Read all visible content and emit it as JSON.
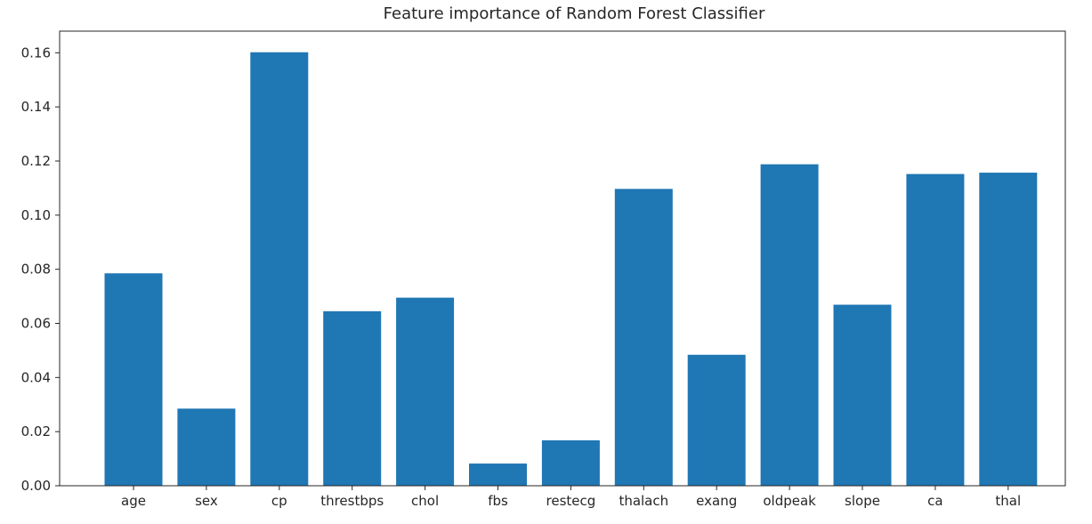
{
  "chart_data": {
    "type": "bar",
    "title": "Feature importance of Random Forest Classifier",
    "xlabel": "",
    "ylabel": "",
    "categories": [
      "age",
      "sex",
      "cp",
      "threstbps",
      "chol",
      "fbs",
      "restecg",
      "thalach",
      "exang",
      "oldpeak",
      "slope",
      "ca",
      "thal"
    ],
    "values": [
      0.0785,
      0.0285,
      0.1602,
      0.0645,
      0.0695,
      0.0082,
      0.0168,
      0.1097,
      0.0484,
      0.1188,
      0.0669,
      0.1152,
      0.1157
    ],
    "ylim": [
      0,
      0.168
    ],
    "yticks": [
      "0.00",
      "0.02",
      "0.04",
      "0.06",
      "0.08",
      "0.10",
      "0.12",
      "0.14",
      "0.16"
    ],
    "grid": false,
    "legend": "none",
    "colors": {
      "bar": "#1f77b4",
      "axis": "#262626"
    }
  }
}
